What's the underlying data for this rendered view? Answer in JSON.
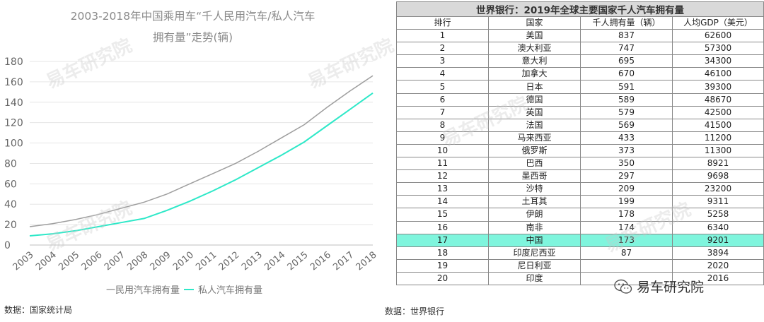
{
  "chart_data": {
    "type": "line",
    "title_line1": "2003-2018年中国乘用车“千人民用汽车/私人汽车",
    "title_line2": "拥有量”走势(辆)",
    "x": [
      "2003",
      "2004",
      "2005",
      "2006",
      "2007",
      "2008",
      "2009",
      "2010",
      "2011",
      "2012",
      "2013",
      "2014",
      "2015",
      "2016",
      "2017",
      "2018"
    ],
    "ylim": [
      0,
      180
    ],
    "yticks": [
      0,
      20,
      40,
      60,
      80,
      100,
      120,
      140,
      160,
      180
    ],
    "grid": true,
    "legend_position": "bottom",
    "series": [
      {
        "name": "民用汽车拥有量",
        "color": "#9e9e9e",
        "values": [
          18,
          21,
          25,
          30,
          36,
          42,
          50,
          60,
          70,
          80,
          92,
          105,
          118,
          135,
          151,
          166
        ]
      },
      {
        "name": "私人汽车拥有量",
        "color": "#2ee8c8",
        "values": [
          9,
          11,
          14,
          18,
          22,
          26,
          34,
          43,
          53,
          64,
          76,
          88,
          101,
          117,
          133,
          149
        ]
      }
    ],
    "legend_series1": "一民用汽车拥有量",
    "legend_series2": "私人汽车拥有量",
    "source": "数据：国家统计局"
  },
  "table": {
    "title": "世界银行：2019年全球主要国家千人汽车拥有量",
    "headers": [
      "排行",
      "国家",
      "千人拥有量（辆）",
      "人均GDP（美元）"
    ],
    "highlight_row": 16,
    "highlight_color": "#7ff5dd",
    "rows": [
      [
        "1",
        "美国",
        "837",
        "62600"
      ],
      [
        "2",
        "澳大利亚",
        "747",
        "57300"
      ],
      [
        "3",
        "意大利",
        "695",
        "34300"
      ],
      [
        "4",
        "加拿大",
        "670",
        "46100"
      ],
      [
        "5",
        "日本",
        "591",
        "39300"
      ],
      [
        "6",
        "德国",
        "589",
        "48670"
      ],
      [
        "7",
        "英国",
        "579",
        "42500"
      ],
      [
        "8",
        "法国",
        "569",
        "41500"
      ],
      [
        "9",
        "马来西亚",
        "433",
        "11200"
      ],
      [
        "10",
        "俄罗斯",
        "373",
        "11300"
      ],
      [
        "11",
        "巴西",
        "350",
        "8921"
      ],
      [
        "12",
        "墨西哥",
        "297",
        "9698"
      ],
      [
        "13",
        "沙特",
        "209",
        "23200"
      ],
      [
        "14",
        "土耳其",
        "199",
        "9311"
      ],
      [
        "15",
        "伊朗",
        "178",
        "5258"
      ],
      [
        "16",
        "南非",
        "174",
        "6340"
      ],
      [
        "17",
        "中国",
        "173",
        "9201"
      ],
      [
        "18",
        "印度尼西亚",
        "87",
        "3894"
      ],
      [
        "19",
        "尼日利亚",
        "",
        "2020"
      ],
      [
        "20",
        "印度",
        "",
        "2016"
      ]
    ],
    "source": "数据：世界银行"
  },
  "branding": {
    "watermark": "易车研究院",
    "logo_text": "易车研究院",
    "logo_icon": "wechat-icon"
  }
}
